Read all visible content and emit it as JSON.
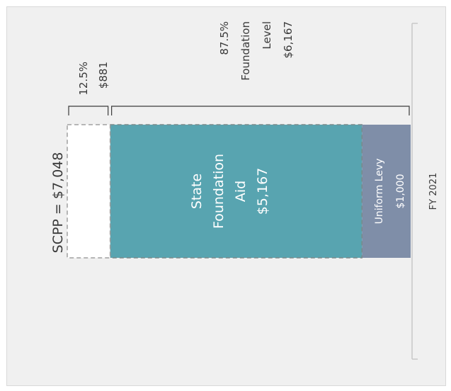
{
  "colors": {
    "background": "#f0f0f0",
    "state_aid": "#58a4b0",
    "uniform_levy": "#7f8ea8",
    "scpp_outline": "#9a9a9a",
    "text": "#3a3a3a",
    "axis": "#c8c8c8"
  },
  "chart_data": {
    "type": "bar",
    "orientation": "stacked, rotated 90 degrees",
    "category_label": "FY 2021",
    "segments": [
      {
        "name": "Uniform Levy",
        "value": 1000,
        "value_label": "$1,000",
        "color": "#7f8ea8"
      },
      {
        "name": "State Foundation Aid",
        "value": 5167,
        "value_label": "$5,167",
        "color": "#58a4b0"
      },
      {
        "name": "SCPP remainder",
        "value": 881,
        "value_label": "$881",
        "color": "#ffffff",
        "style": "dashed"
      }
    ],
    "total": {
      "label": "SCPP = $7,048",
      "value": 7048
    },
    "brackets": [
      {
        "pct": "12.5%",
        "amount": "$881"
      },
      {
        "pct": "87.5%",
        "text1": "Foundation",
        "text2": "Level",
        "amount": "$6,167"
      }
    ],
    "inner_labels": {
      "state": [
        "State",
        "Foundation",
        "Aid",
        "$5,167"
      ],
      "levy": [
        "Uniform Levy",
        "$1,000"
      ]
    }
  }
}
